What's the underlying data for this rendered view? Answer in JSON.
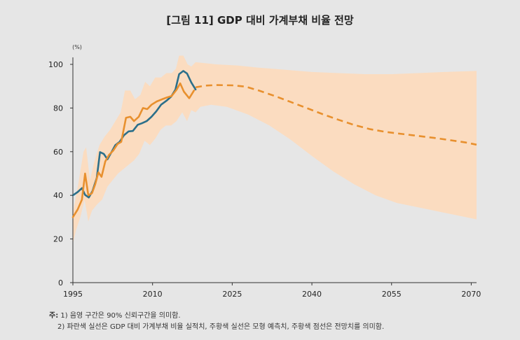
{
  "title": "[그림 11] GDP 대비 가계부채 비율 전망",
  "chart_data": {
    "type": "line",
    "title": "[그림 11] GDP 대비 가계부채 비율 전망",
    "unit_label": "(%)",
    "xlabel": "",
    "ylabel": "",
    "xlim": [
      1995,
      2071
    ],
    "ylim": [
      0,
      105
    ],
    "x_ticks": [
      1995,
      2010,
      2025,
      2040,
      2055,
      2070
    ],
    "y_ticks": [
      0,
      20,
      40,
      60,
      80,
      100
    ],
    "grid": false,
    "colors": {
      "actual": "#2b6f8a",
      "model": "#e8902e",
      "forecast": "#e8902e",
      "band": "#fbdcc0",
      "band_inner": "#f9cfa8"
    },
    "series": [
      {
        "key": "actual",
        "style": "solid",
        "points": [
          [
            1995.0,
            40
          ],
          [
            1995.9,
            41.5
          ],
          [
            1996.7,
            43.3
          ],
          [
            1997.3,
            40.2
          ],
          [
            1998.0,
            39
          ],
          [
            1998.7,
            42
          ],
          [
            1999.5,
            48
          ],
          [
            2000.1,
            59.8
          ],
          [
            2000.8,
            59
          ],
          [
            2001.5,
            56.5
          ],
          [
            2002.2,
            59.5
          ],
          [
            2003.0,
            63
          ],
          [
            2003.8,
            64.5
          ],
          [
            2004.6,
            67.5
          ],
          [
            2005.5,
            69.3
          ],
          [
            2006.3,
            69.5
          ],
          [
            2007.2,
            72.3
          ],
          [
            2008.0,
            73
          ],
          [
            2008.9,
            74
          ],
          [
            2009.8,
            76
          ],
          [
            2010.7,
            78.5
          ],
          [
            2011.6,
            81.5
          ],
          [
            2012.6,
            83.3
          ],
          [
            2013.5,
            85.2
          ],
          [
            2014.3,
            88.4
          ],
          [
            2015.0,
            95.5
          ],
          [
            2015.8,
            97
          ],
          [
            2016.5,
            95.8
          ],
          [
            2017.3,
            91.7
          ],
          [
            2018.1,
            88.5
          ]
        ]
      },
      {
        "key": "model",
        "style": "solid",
        "points": [
          [
            1995.0,
            30
          ],
          [
            1995.9,
            33.5
          ],
          [
            1996.7,
            38
          ],
          [
            1997.3,
            50
          ],
          [
            1997.9,
            40
          ],
          [
            1998.6,
            41
          ],
          [
            1999.2,
            45
          ],
          [
            1999.8,
            50.5
          ],
          [
            2000.4,
            48.5
          ],
          [
            2001.1,
            55.5
          ],
          [
            2001.8,
            58.5
          ],
          [
            2002.6,
            60.5
          ],
          [
            2003.4,
            63.5
          ],
          [
            2004.1,
            64.5
          ],
          [
            2005.0,
            75.5
          ],
          [
            2005.8,
            76
          ],
          [
            2006.5,
            74
          ],
          [
            2007.4,
            76
          ],
          [
            2008.2,
            80
          ],
          [
            2009.0,
            79.5
          ],
          [
            2009.8,
            81.5
          ],
          [
            2010.8,
            83
          ],
          [
            2011.8,
            84
          ],
          [
            2012.7,
            84.8
          ],
          [
            2013.6,
            85.5
          ],
          [
            2014.5,
            88.3
          ],
          [
            2015.2,
            91.3
          ],
          [
            2015.9,
            87.5
          ],
          [
            2016.9,
            84.5
          ],
          [
            2017.8,
            88
          ]
        ]
      },
      {
        "key": "forecast",
        "style": "dashed",
        "points": [
          [
            2018.1,
            89.5
          ],
          [
            2020,
            90.3
          ],
          [
            2022,
            90.5
          ],
          [
            2025,
            90.4
          ],
          [
            2027.5,
            89.8
          ],
          [
            2030,
            88
          ],
          [
            2033,
            85.5
          ],
          [
            2036,
            82.8
          ],
          [
            2039,
            80
          ],
          [
            2042,
            77.2
          ],
          [
            2045,
            74.6
          ],
          [
            2048,
            72.2
          ],
          [
            2051,
            70.3
          ],
          [
            2054,
            69
          ],
          [
            2057,
            68.1
          ],
          [
            2060,
            67.2
          ],
          [
            2063,
            66.3
          ],
          [
            2066,
            65.3
          ],
          [
            2069,
            64.2
          ],
          [
            2071,
            63.2
          ]
        ]
      }
    ],
    "band": {
      "upper": [
        [
          1995.0,
          32
        ],
        [
          1996.0,
          45
        ],
        [
          1997.0,
          60
        ],
        [
          1997.5,
          62
        ],
        [
          1998.2,
          47
        ],
        [
          1999.0,
          55
        ],
        [
          2000.0,
          63
        ],
        [
          2001.0,
          67
        ],
        [
          2002.0,
          70
        ],
        [
          2003.0,
          74
        ],
        [
          2004.0,
          78
        ],
        [
          2004.8,
          88
        ],
        [
          2005.8,
          88
        ],
        [
          2006.7,
          84
        ],
        [
          2007.7,
          86
        ],
        [
          2008.6,
          92
        ],
        [
          2009.5,
          90
        ],
        [
          2010.5,
          94
        ],
        [
          2011.6,
          94
        ],
        [
          2012.6,
          96
        ],
        [
          2013.6,
          96
        ],
        [
          2014.4,
          98
        ],
        [
          2015.0,
          104
        ],
        [
          2015.8,
          104
        ],
        [
          2016.6,
          100
        ],
        [
          2017.3,
          99
        ],
        [
          2018.1,
          101
        ],
        [
          2022,
          100
        ],
        [
          2026,
          99.5
        ],
        [
          2030,
          98.5
        ],
        [
          2035,
          97.5
        ],
        [
          2040,
          96.5
        ],
        [
          2045,
          96
        ],
        [
          2050,
          95.5
        ],
        [
          2055,
          95.5
        ],
        [
          2060,
          96
        ],
        [
          2065,
          96.5
        ],
        [
          2071,
          97
        ]
      ],
      "lower": [
        [
          2071,
          29
        ],
        [
          2066,
          31.5
        ],
        [
          2061,
          34
        ],
        [
          2056,
          36.5
        ],
        [
          2052,
          40
        ],
        [
          2048,
          45
        ],
        [
          2044,
          51
        ],
        [
          2040,
          58
        ],
        [
          2036,
          65.5
        ],
        [
          2032,
          72
        ],
        [
          2028,
          77
        ],
        [
          2024,
          80.5
        ],
        [
          2021,
          81.5
        ],
        [
          2019,
          80.5
        ],
        [
          2018.1,
          78
        ],
        [
          2017.3,
          79
        ],
        [
          2016.5,
          74
        ],
        [
          2015.6,
          78
        ],
        [
          2014.5,
          74
        ],
        [
          2013.5,
          72
        ],
        [
          2012.5,
          72
        ],
        [
          2011.5,
          70
        ],
        [
          2010.5,
          66
        ],
        [
          2009.5,
          63
        ],
        [
          2008.5,
          65
        ],
        [
          2007.5,
          59
        ],
        [
          2006.5,
          56
        ],
        [
          2005.5,
          54
        ],
        [
          2004.5,
          52
        ],
        [
          2003.5,
          50
        ],
        [
          2002.5,
          47
        ],
        [
          2001.5,
          44
        ],
        [
          2000.5,
          38
        ],
        [
          1999.6,
          36
        ],
        [
          1998.6,
          33
        ],
        [
          1997.9,
          28
        ],
        [
          1997.2,
          38
        ],
        [
          1996.4,
          30
        ],
        [
          1995.6,
          24
        ],
        [
          1995.0,
          18
        ]
      ]
    }
  },
  "notes": {
    "label": "주:",
    "line1": "1) 음영 구간은 90% 신뢰구간을 의미함.",
    "line2": "2) 파란색 실선은 GDP 대비 가계부채 비율 실적치, 주황색 실선은 모형 예측치, 주황색 점선은 전망치를 의미함."
  }
}
